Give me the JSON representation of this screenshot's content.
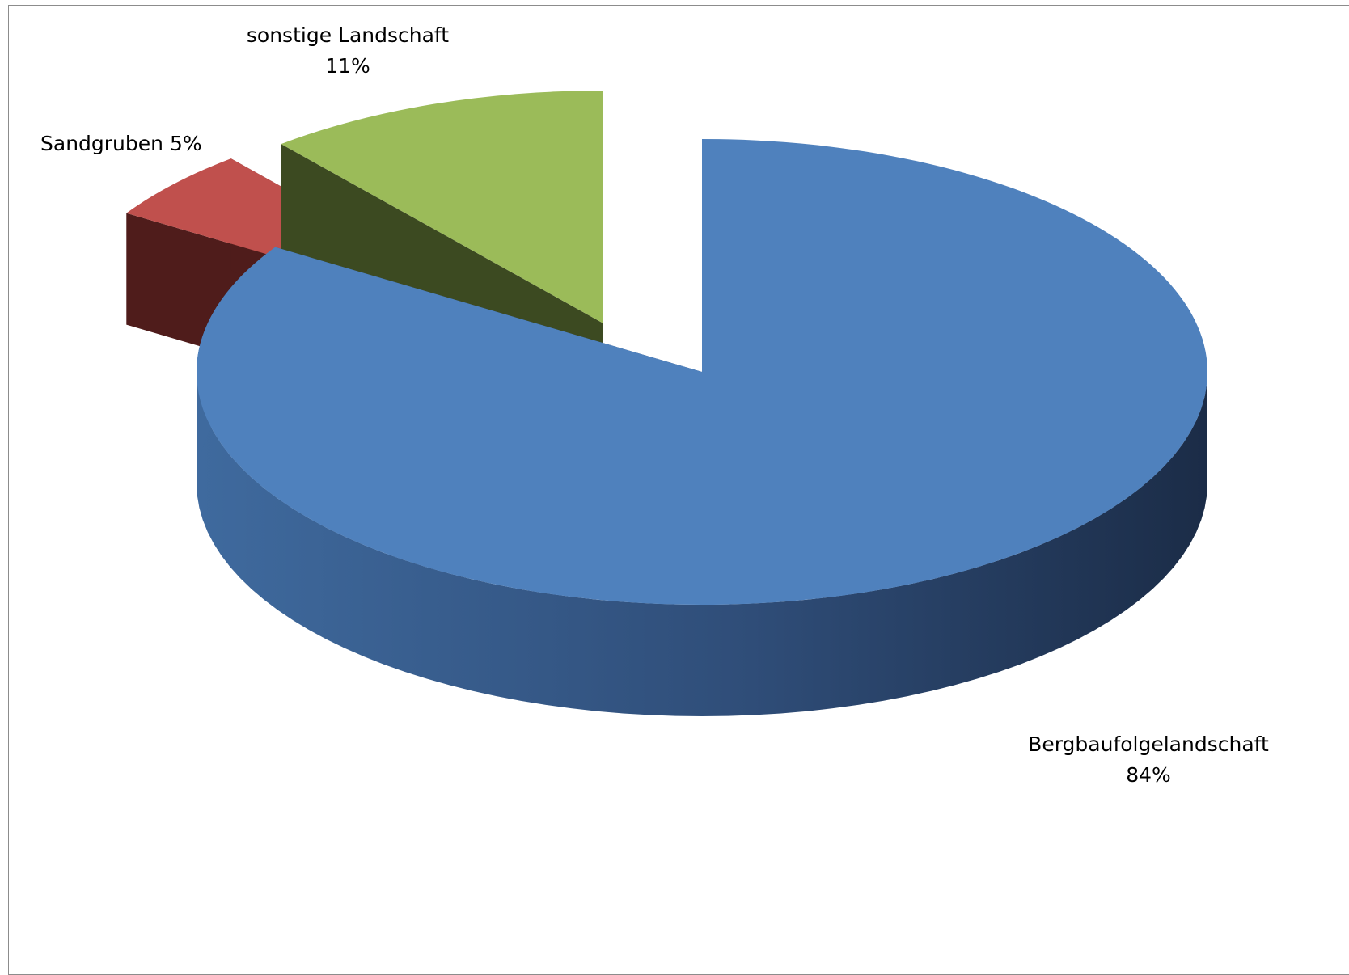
{
  "chart_data": {
    "type": "pie",
    "style": "3d-exploded",
    "slices": [
      {
        "name": "Bergbaufolgelandschaft",
        "value": 84,
        "label": "84%",
        "color": "#4F81BD",
        "side_color": "#2C4770"
      },
      {
        "name": "Sandgruben",
        "value": 5,
        "label": "5%",
        "color": "#C0504D",
        "side_color": "#4F1C1B"
      },
      {
        "name": "sonstige Landschaft",
        "value": 11,
        "label": "11%",
        "color": "#9BBB59",
        "side_color": "#3C4A21"
      }
    ],
    "title": "",
    "legend": "none"
  }
}
